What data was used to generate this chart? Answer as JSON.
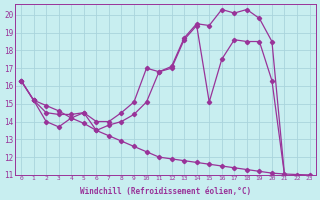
{
  "xlabel": "Windchill (Refroidissement éolien,°C)",
  "bg_color": "#c8eef0",
  "grid_color": "#aad4dc",
  "line_color": "#993399",
  "xlim": [
    -0.5,
    23.5
  ],
  "ylim": [
    11,
    20.6
  ],
  "yticks": [
    11,
    12,
    13,
    14,
    15,
    16,
    17,
    18,
    19,
    20
  ],
  "xticks": [
    0,
    1,
    2,
    3,
    4,
    5,
    6,
    7,
    8,
    9,
    10,
    11,
    12,
    13,
    14,
    15,
    16,
    17,
    18,
    19,
    20,
    21,
    22,
    23
  ],
  "line1_x": [
    0,
    1,
    2,
    3,
    4,
    5,
    6,
    7,
    8,
    9,
    10,
    11,
    12,
    13,
    14,
    15,
    16,
    17,
    18,
    19,
    20,
    21
  ],
  "line1_y": [
    16.3,
    15.2,
    14.5,
    14.4,
    14.4,
    14.5,
    14.0,
    14.0,
    14.5,
    15.1,
    17.0,
    16.8,
    17.1,
    18.7,
    19.5,
    19.4,
    20.3,
    20.1,
    20.3,
    19.8,
    18.5,
    11.0
  ],
  "line2_x": [
    0,
    1,
    2,
    3,
    4,
    5,
    6,
    7,
    8,
    9,
    10,
    11,
    12,
    13,
    14,
    15,
    16,
    17,
    18,
    19,
    20,
    21
  ],
  "line2_y": [
    16.3,
    15.2,
    14.0,
    13.7,
    14.2,
    14.5,
    13.5,
    13.8,
    14.0,
    14.4,
    15.1,
    16.8,
    17.0,
    18.6,
    19.4,
    15.1,
    17.5,
    18.6,
    18.5,
    18.5,
    16.3,
    11.0
  ],
  "line3_x": [
    0,
    1,
    2,
    3,
    4,
    5,
    6,
    7,
    8,
    9,
    10,
    11,
    12,
    13,
    14,
    15,
    16,
    17,
    18,
    19,
    20,
    21,
    22,
    23
  ],
  "line3_y": [
    16.3,
    15.2,
    14.9,
    14.6,
    14.2,
    13.9,
    13.5,
    13.2,
    12.9,
    12.6,
    12.3,
    12.0,
    11.9,
    11.8,
    11.7,
    11.6,
    11.5,
    11.4,
    11.3,
    11.2,
    11.1,
    11.05,
    11.02,
    11.0
  ]
}
